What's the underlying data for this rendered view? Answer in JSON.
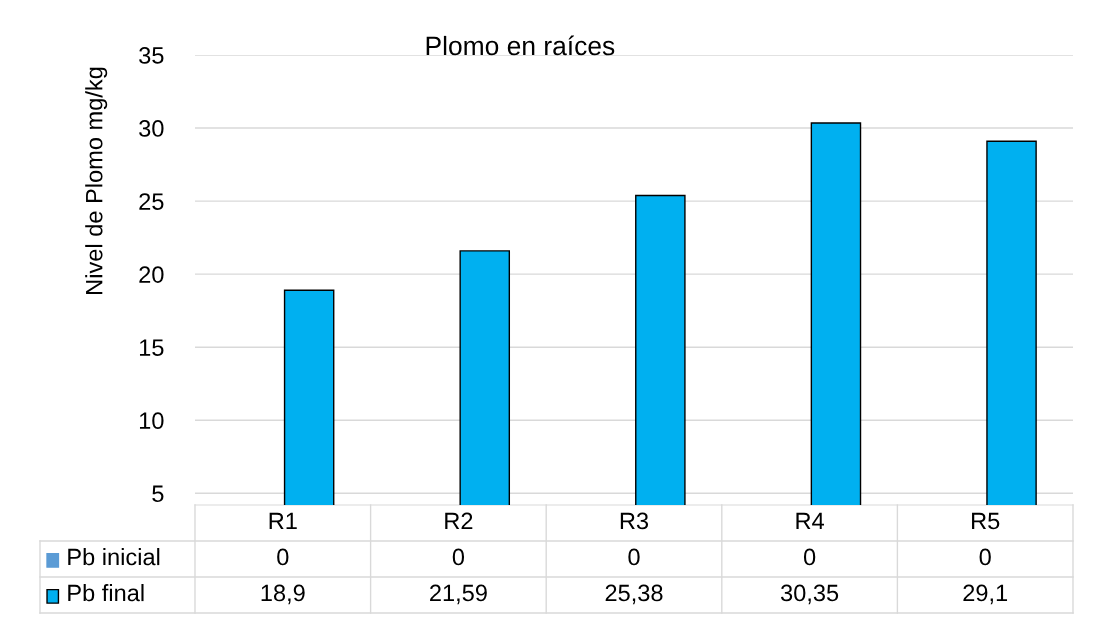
{
  "chart_data": {
    "type": "bar",
    "title": "Plomo en raíces",
    "ylabel": "Nivel de Plomo mg/kg",
    "categories": [
      "R1",
      "R2",
      "R3",
      "R4",
      "R5"
    ],
    "series": [
      {
        "name": "Pb inicial",
        "color": "#5b9bd5",
        "values": [
          null,
          null,
          null,
          null,
          null
        ],
        "value_labels": [
          "0",
          "0",
          "0",
          "0",
          "0"
        ]
      },
      {
        "name": "Pb final",
        "color": "#00b0f0",
        "values": [
          18.9,
          21.59,
          25.38,
          30.35,
          29.1
        ],
        "value_labels": [
          "18,9",
          "21,59",
          "25,38",
          "30,35",
          "29,1"
        ]
      }
    ],
    "ylim": [
      4.2,
      35
    ],
    "yticks": [
      5,
      10,
      15,
      20,
      25,
      30,
      35
    ],
    "grid": "y",
    "legend": "bottom"
  }
}
